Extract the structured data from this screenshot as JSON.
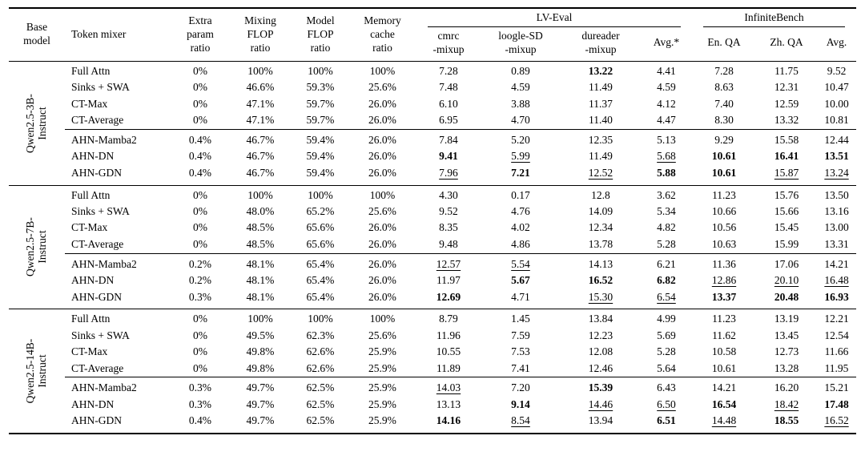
{
  "header": {
    "base_model": "Base\nmodel",
    "token_mixer": "Token mixer",
    "extra_param": "Extra\nparam\nratio",
    "mixing_flop": "Mixing\nFLOP\nratio",
    "model_flop": "Model\nFLOP\nratio",
    "memory_cache": "Memory\ncache\nratio",
    "groups": {
      "lv_eval": "LV-Eval",
      "infinite_bench": "InfiniteBench"
    },
    "sub_columns": [
      "cmrc\n-mixup",
      "loogle-SD\n-mixup",
      "dureader\n-mixup",
      "Avg.*",
      "En. QA",
      "Zh. QA",
      "Avg."
    ]
  },
  "blocks": [
    {
      "base_model": "Qwen2.5-3B-\nInstruct",
      "rows": [
        {
          "mixer": "Full Attn",
          "ratios": [
            "0%",
            "100%",
            "100%",
            "100%"
          ],
          "metrics": [
            {
              "v": "7.28"
            },
            {
              "v": "0.89"
            },
            {
              "v": "13.22",
              "f": "b"
            },
            {
              "v": "4.41"
            },
            {
              "v": "7.28"
            },
            {
              "v": "11.75"
            },
            {
              "v": "9.52"
            }
          ]
        },
        {
          "mixer": "Sinks + SWA",
          "ratios": [
            "0%",
            "46.6%",
            "59.3%",
            "25.6%"
          ],
          "metrics": [
            {
              "v": "7.48"
            },
            {
              "v": "4.59"
            },
            {
              "v": "11.49"
            },
            {
              "v": "4.59"
            },
            {
              "v": "8.63"
            },
            {
              "v": "12.31"
            },
            {
              "v": "10.47"
            }
          ]
        },
        {
          "mixer": "CT-Max",
          "ratios": [
            "0%",
            "47.1%",
            "59.7%",
            "26.0%"
          ],
          "metrics": [
            {
              "v": "6.10"
            },
            {
              "v": "3.88"
            },
            {
              "v": "11.37"
            },
            {
              "v": "4.12"
            },
            {
              "v": "7.40"
            },
            {
              "v": "12.59"
            },
            {
              "v": "10.00"
            }
          ]
        },
        {
          "mixer": "CT-Average",
          "ratios": [
            "0%",
            "47.1%",
            "59.7%",
            "26.0%"
          ],
          "metrics": [
            {
              "v": "6.95"
            },
            {
              "v": "4.70"
            },
            {
              "v": "11.40"
            },
            {
              "v": "4.47"
            },
            {
              "v": "8.30"
            },
            {
              "v": "13.32"
            },
            {
              "v": "10.81"
            }
          ]
        },
        {
          "mixer": "AHN-Mamba2",
          "group_start": true,
          "ratios": [
            "0.4%",
            "46.7%",
            "59.4%",
            "26.0%"
          ],
          "metrics": [
            {
              "v": "7.84"
            },
            {
              "v": "5.20"
            },
            {
              "v": "12.35"
            },
            {
              "v": "5.13"
            },
            {
              "v": "9.29"
            },
            {
              "v": "15.58"
            },
            {
              "v": "12.44"
            }
          ]
        },
        {
          "mixer": "AHN-DN",
          "ratios": [
            "0.4%",
            "46.7%",
            "59.4%",
            "26.0%"
          ],
          "metrics": [
            {
              "v": "9.41",
              "f": "b"
            },
            {
              "v": "5.99",
              "f": "u"
            },
            {
              "v": "11.49"
            },
            {
              "v": "5.68",
              "f": "u"
            },
            {
              "v": "10.61",
              "f": "b"
            },
            {
              "v": "16.41",
              "f": "b"
            },
            {
              "v": "13.51",
              "f": "b"
            }
          ]
        },
        {
          "mixer": "AHN-GDN",
          "ratios": [
            "0.4%",
            "46.7%",
            "59.4%",
            "26.0%"
          ],
          "metrics": [
            {
              "v": "7.96",
              "f": "u"
            },
            {
              "v": "7.21",
              "f": "b"
            },
            {
              "v": "12.52",
              "f": "u"
            },
            {
              "v": "5.88",
              "f": "b"
            },
            {
              "v": "10.61",
              "f": "b"
            },
            {
              "v": "15.87",
              "f": "u"
            },
            {
              "v": "13.24",
              "f": "u"
            }
          ]
        }
      ]
    },
    {
      "base_model": "Qwen2.5-7B-\nInstruct",
      "rows": [
        {
          "mixer": "Full Attn",
          "ratios": [
            "0%",
            "100%",
            "100%",
            "100%"
          ],
          "metrics": [
            {
              "v": "4.30"
            },
            {
              "v": "0.17"
            },
            {
              "v": "12.8"
            },
            {
              "v": "3.62"
            },
            {
              "v": "11.23"
            },
            {
              "v": "15.76"
            },
            {
              "v": "13.50"
            }
          ]
        },
        {
          "mixer": "Sinks + SWA",
          "ratios": [
            "0%",
            "48.0%",
            "65.2%",
            "25.6%"
          ],
          "metrics": [
            {
              "v": "9.52"
            },
            {
              "v": "4.76"
            },
            {
              "v": "14.09"
            },
            {
              "v": "5.34"
            },
            {
              "v": "10.66"
            },
            {
              "v": "15.66"
            },
            {
              "v": "13.16"
            }
          ]
        },
        {
          "mixer": "CT-Max",
          "ratios": [
            "0%",
            "48.5%",
            "65.6%",
            "26.0%"
          ],
          "metrics": [
            {
              "v": "8.35"
            },
            {
              "v": "4.02"
            },
            {
              "v": "12.34"
            },
            {
              "v": "4.82"
            },
            {
              "v": "10.56"
            },
            {
              "v": "15.45"
            },
            {
              "v": "13.00"
            }
          ]
        },
        {
          "mixer": "CT-Average",
          "ratios": [
            "0%",
            "48.5%",
            "65.6%",
            "26.0%"
          ],
          "metrics": [
            {
              "v": "9.48"
            },
            {
              "v": "4.86"
            },
            {
              "v": "13.78"
            },
            {
              "v": "5.28"
            },
            {
              "v": "10.63"
            },
            {
              "v": "15.99"
            },
            {
              "v": "13.31"
            }
          ]
        },
        {
          "mixer": "AHN-Mamba2",
          "group_start": true,
          "ratios": [
            "0.2%",
            "48.1%",
            "65.4%",
            "26.0%"
          ],
          "metrics": [
            {
              "v": "12.57",
              "f": "u"
            },
            {
              "v": "5.54",
              "f": "u"
            },
            {
              "v": "14.13"
            },
            {
              "v": "6.21"
            },
            {
              "v": "11.36"
            },
            {
              "v": "17.06"
            },
            {
              "v": "14.21"
            }
          ]
        },
        {
          "mixer": "AHN-DN",
          "ratios": [
            "0.2%",
            "48.1%",
            "65.4%",
            "26.0%"
          ],
          "metrics": [
            {
              "v": "11.97"
            },
            {
              "v": "5.67",
              "f": "b"
            },
            {
              "v": "16.52",
              "f": "b"
            },
            {
              "v": "6.82",
              "f": "b"
            },
            {
              "v": "12.86",
              "f": "u"
            },
            {
              "v": "20.10",
              "f": "u"
            },
            {
              "v": "16.48",
              "f": "u"
            }
          ]
        },
        {
          "mixer": "AHN-GDN",
          "ratios": [
            "0.3%",
            "48.1%",
            "65.4%",
            "26.0%"
          ],
          "metrics": [
            {
              "v": "12.69",
              "f": "b"
            },
            {
              "v": "4.71"
            },
            {
              "v": "15.30",
              "f": "u"
            },
            {
              "v": "6.54",
              "f": "u"
            },
            {
              "v": "13.37",
              "f": "b"
            },
            {
              "v": "20.48",
              "f": "b"
            },
            {
              "v": "16.93",
              "f": "b"
            }
          ]
        }
      ]
    },
    {
      "base_model": "Qwen2.5-14B-\nInstruct",
      "rows": [
        {
          "mixer": "Full Attn",
          "ratios": [
            "0%",
            "100%",
            "100%",
            "100%"
          ],
          "metrics": [
            {
              "v": "8.79"
            },
            {
              "v": "1.45"
            },
            {
              "v": "13.84"
            },
            {
              "v": "4.99"
            },
            {
              "v": "11.23"
            },
            {
              "v": "13.19"
            },
            {
              "v": "12.21"
            }
          ]
        },
        {
          "mixer": "Sinks + SWA",
          "ratios": [
            "0%",
            "49.5%",
            "62.3%",
            "25.6%"
          ],
          "metrics": [
            {
              "v": "11.96"
            },
            {
              "v": "7.59"
            },
            {
              "v": "12.23"
            },
            {
              "v": "5.69"
            },
            {
              "v": "11.62"
            },
            {
              "v": "13.45"
            },
            {
              "v": "12.54"
            }
          ]
        },
        {
          "mixer": "CT-Max",
          "ratios": [
            "0%",
            "49.8%",
            "62.6%",
            "25.9%"
          ],
          "metrics": [
            {
              "v": "10.55"
            },
            {
              "v": "7.53"
            },
            {
              "v": "12.08"
            },
            {
              "v": "5.28"
            },
            {
              "v": "10.58"
            },
            {
              "v": "12.73"
            },
            {
              "v": "11.66"
            }
          ]
        },
        {
          "mixer": "CT-Average",
          "ratios": [
            "0%",
            "49.8%",
            "62.6%",
            "25.9%"
          ],
          "metrics": [
            {
              "v": "11.89"
            },
            {
              "v": "7.41"
            },
            {
              "v": "12.46"
            },
            {
              "v": "5.64"
            },
            {
              "v": "10.61"
            },
            {
              "v": "13.28"
            },
            {
              "v": "11.95"
            }
          ]
        },
        {
          "mixer": "AHN-Mamba2",
          "group_start": true,
          "ratios": [
            "0.3%",
            "49.7%",
            "62.5%",
            "25.9%"
          ],
          "metrics": [
            {
              "v": "14.03",
              "f": "u"
            },
            {
              "v": "7.20"
            },
            {
              "v": "15.39",
              "f": "b"
            },
            {
              "v": "6.43"
            },
            {
              "v": "14.21"
            },
            {
              "v": "16.20"
            },
            {
              "v": "15.21"
            }
          ]
        },
        {
          "mixer": "AHN-DN",
          "ratios": [
            "0.3%",
            "49.7%",
            "62.5%",
            "25.9%"
          ],
          "metrics": [
            {
              "v": "13.13"
            },
            {
              "v": "9.14",
              "f": "b"
            },
            {
              "v": "14.46",
              "f": "u"
            },
            {
              "v": "6.50",
              "f": "u"
            },
            {
              "v": "16.54",
              "f": "b"
            },
            {
              "v": "18.42",
              "f": "u"
            },
            {
              "v": "17.48",
              "f": "b"
            }
          ]
        },
        {
          "mixer": "AHN-GDN",
          "ratios": [
            "0.4%",
            "49.7%",
            "62.5%",
            "25.9%"
          ],
          "metrics": [
            {
              "v": "14.16",
              "f": "b"
            },
            {
              "v": "8.54",
              "f": "u"
            },
            {
              "v": "13.94"
            },
            {
              "v": "6.51",
              "f": "b"
            },
            {
              "v": "14.48",
              "f": "u"
            },
            {
              "v": "18.55",
              "f": "b"
            },
            {
              "v": "16.52",
              "f": "u"
            }
          ]
        }
      ]
    }
  ]
}
